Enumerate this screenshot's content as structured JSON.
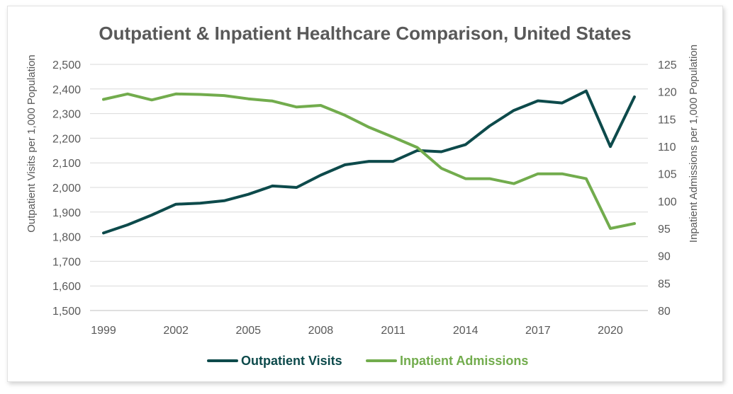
{
  "chart_data": {
    "type": "line",
    "title": "Outpatient & Inpatient Healthcare Comparison, United States",
    "x": [
      1999,
      2000,
      2001,
      2002,
      2003,
      2004,
      2005,
      2006,
      2007,
      2008,
      2009,
      2010,
      2011,
      2012,
      2013,
      2014,
      2015,
      2016,
      2017,
      2018,
      2019,
      2020,
      2021
    ],
    "x_tick_labels": [
      "1999",
      "2002",
      "2005",
      "2008",
      "2011",
      "2014",
      "2017",
      "2020"
    ],
    "xlim": [
      1999,
      2021
    ],
    "ylabel_left": "Outpatient Visits per 1,000 Population",
    "ylabel_right": "Inpatient Admissions per 1,000 Population",
    "ylim_left": [
      1500,
      2500
    ],
    "ylim_right": [
      80,
      125
    ],
    "y_ticks_left": [
      "1,500",
      "1,600",
      "1,700",
      "1,800",
      "1,900",
      "2,000",
      "2,100",
      "2,200",
      "2,300",
      "2,400",
      "2,500"
    ],
    "y_ticks_right": [
      "80",
      "85",
      "90",
      "95",
      "100",
      "105",
      "110",
      "115",
      "120",
      "125"
    ],
    "grid": true,
    "legend_position": "bottom",
    "series": [
      {
        "name": "Outpatient Visits",
        "axis": "left",
        "color": "#0d4a4b",
        "values": [
          1815,
          1848,
          1888,
          1932,
          1936,
          1946,
          1972,
          2006,
          2000,
          2050,
          2092,
          2106,
          2106,
          2150,
          2145,
          2174,
          2250,
          2313,
          2352,
          2343,
          2392,
          2166,
          2368
        ]
      },
      {
        "name": "Inpatient Admissions",
        "axis": "right",
        "color": "#72ac4d",
        "values": [
          118.6,
          119.6,
          118.5,
          119.6,
          119.5,
          119.3,
          118.7,
          118.3,
          117.2,
          117.5,
          115.7,
          113.5,
          111.7,
          109.8,
          106.0,
          104.1,
          104.1,
          103.2,
          105.0,
          105.0,
          104.1,
          95.0,
          95.9
        ]
      }
    ]
  }
}
